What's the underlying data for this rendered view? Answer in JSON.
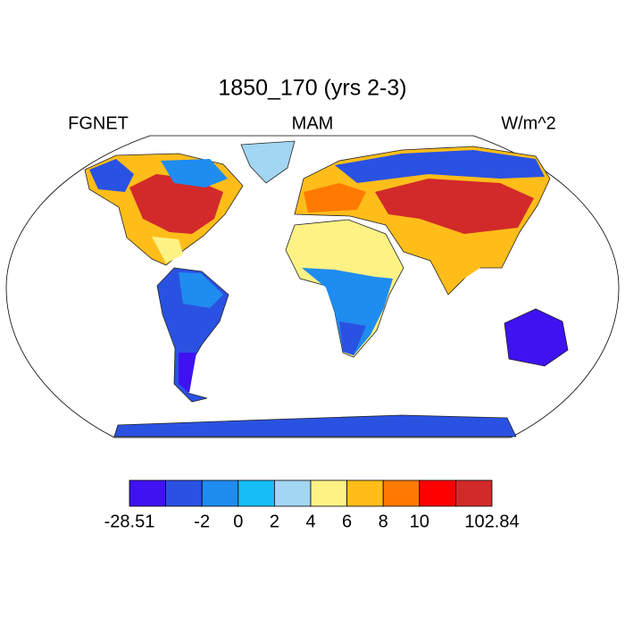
{
  "header": {
    "title": "1850_170 (yrs 2-3)",
    "left_label": "FGNET",
    "center_label": "MAM",
    "right_label": "W/m^2"
  },
  "colorbar": {
    "levels": [
      -28.51,
      null,
      -2,
      0,
      2,
      4,
      6,
      8,
      10,
      null,
      102.84
    ],
    "colors": [
      "#3f12f2",
      "#2a52e2",
      "#1f8cf0",
      "#16bef8",
      "#a2d6f2",
      "#fff285",
      "#ffbd1a",
      "#ff7a00",
      "#ff0000",
      "#d22a2a"
    ]
  }
}
